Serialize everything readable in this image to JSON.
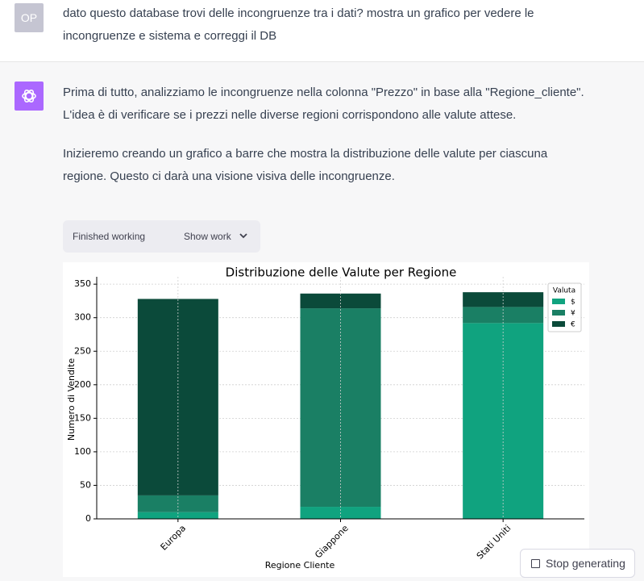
{
  "user": {
    "avatar": "OP",
    "text": "dato questo database trovi delle incongruenze tra i dati? mostra un grafico per vedere le incongruenze e sistema e correggi il DB"
  },
  "assistant": {
    "paragraphs": [
      "Prima di tutto, analizziamo le incongruenze nella colonna \"Prezzo\" in base alla \"Regione_cliente\". L'idea è di verificare se i prezzi nelle diverse regioni corrispondono alle valute attese.",
      "Inizieremo creando un grafico a barre che mostra la distribuzione delle valute per ciascuna regione. Questo ci darà una visione visiva delle incongruenze."
    ],
    "tool": {
      "status": "Finished working",
      "action": "Show work"
    }
  },
  "stop_button": "Stop generating",
  "chart_data": {
    "type": "stacked_bar",
    "title": "Distribuzione delle Valute per Regione",
    "x_label": "Regione Cliente",
    "y_label": "Numero di Vendite",
    "categories": [
      "Europa",
      "Giappone",
      "Stati Uniti"
    ],
    "series": [
      {
        "name": "$",
        "color": "#10a37f",
        "values": [
          10,
          18,
          292
        ]
      },
      {
        "name": "¥",
        "color": "#1a7f64",
        "values": [
          25,
          296,
          24
        ]
      },
      {
        "name": "€",
        "color": "#0b4a3a",
        "values": [
          293,
          22,
          22
        ]
      }
    ],
    "legend_title": "Valuta",
    "legend": "upper right",
    "ylim": [
      0,
      355
    ],
    "yticks": [
      0,
      50,
      100,
      150,
      200,
      250,
      300,
      350
    ],
    "grid": true
  }
}
